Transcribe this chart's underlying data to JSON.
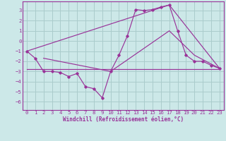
{
  "xlabel": "Windchill (Refroidissement éolien,°C)",
  "bg_color": "#cce8e8",
  "line_color": "#993399",
  "grid_color": "#aacccc",
  "xlim": [
    -0.5,
    23.5
  ],
  "ylim": [
    -6.8,
    3.9
  ],
  "yticks": [
    3,
    2,
    1,
    0,
    -1,
    -2,
    -3,
    -4,
    -5,
    -6
  ],
  "xticks": [
    0,
    1,
    2,
    3,
    4,
    5,
    6,
    7,
    8,
    9,
    10,
    11,
    12,
    13,
    14,
    15,
    16,
    17,
    18,
    19,
    20,
    21,
    22,
    23
  ],
  "line1_x": [
    0,
    1,
    2,
    3,
    4,
    5,
    6,
    7,
    8,
    9,
    10,
    11,
    12,
    13,
    14,
    15,
    16,
    17,
    18,
    19,
    20,
    21,
    22,
    23
  ],
  "line1_y": [
    -1.0,
    -1.7,
    -3.0,
    -3.0,
    -3.1,
    -3.5,
    -3.2,
    -4.5,
    -4.7,
    -5.6,
    -3.0,
    -1.4,
    0.5,
    3.1,
    3.0,
    3.1,
    3.35,
    3.55,
    1.0,
    -1.4,
    -2.0,
    -2.0,
    -2.4,
    -2.7
  ],
  "line2_x": [
    0,
    17,
    23
  ],
  "line2_y": [
    -1.0,
    3.55,
    -2.7
  ],
  "line3_x": [
    0,
    23
  ],
  "line3_y": [
    -2.8,
    -2.8
  ],
  "line4_x": [
    2,
    10,
    17,
    20,
    23
  ],
  "line4_y": [
    -1.7,
    -3.0,
    1.0,
    -1.4,
    -2.7
  ]
}
